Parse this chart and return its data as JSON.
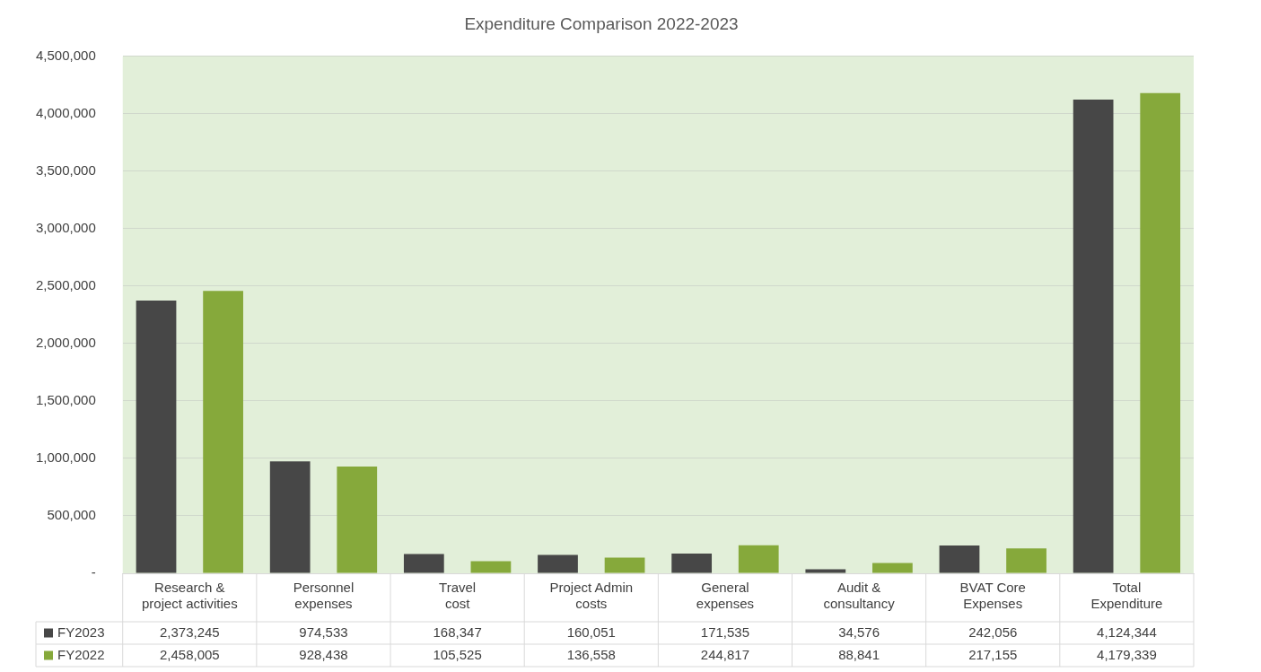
{
  "chart_data": {
    "type": "bar",
    "title": "Expenditure Comparison 2022-2023",
    "categories": [
      "Research & project activities",
      "Personnel expenses",
      "Travel cost",
      "Project Admin costs",
      "General expenses",
      "Audit & consultancy",
      "BVAT Core Expenses",
      "Total Expenditure"
    ],
    "series": [
      {
        "name": "FY2023",
        "color": "#474747",
        "values": [
          2373245,
          974533,
          168347,
          160051,
          171535,
          34576,
          242056,
          4124344
        ],
        "value_labels": [
          "2,373,245",
          "974,533",
          "168,347",
          "160,051",
          "171,535",
          "34,576",
          "242,056",
          "4,124,344"
        ]
      },
      {
        "name": "FY2022",
        "color": "#86a93b",
        "values": [
          2458005,
          928438,
          105525,
          136558,
          244817,
          88841,
          217155,
          4179339
        ],
        "value_labels": [
          "2,458,005",
          "928,438",
          "105,525",
          "136,558",
          "244,817",
          "88,841",
          "217,155",
          "4,179,339"
        ]
      }
    ],
    "ylim": [
      0,
      4500000
    ],
    "yticks": [
      {
        "value": 0,
        "label": "-"
      },
      {
        "value": 500000,
        "label": "500,000"
      },
      {
        "value": 1000000,
        "label": "1,000,000"
      },
      {
        "value": 1500000,
        "label": "1,500,000"
      },
      {
        "value": 2000000,
        "label": "2,000,000"
      },
      {
        "value": 2500000,
        "label": "2,500,000"
      },
      {
        "value": 3000000,
        "label": "3,000,000"
      },
      {
        "value": 3500000,
        "label": "3,500,000"
      },
      {
        "value": 4000000,
        "label": "4,000,000"
      },
      {
        "value": 4500000,
        "label": "4,500,000"
      }
    ],
    "grid": "y",
    "legend": "bottom"
  }
}
